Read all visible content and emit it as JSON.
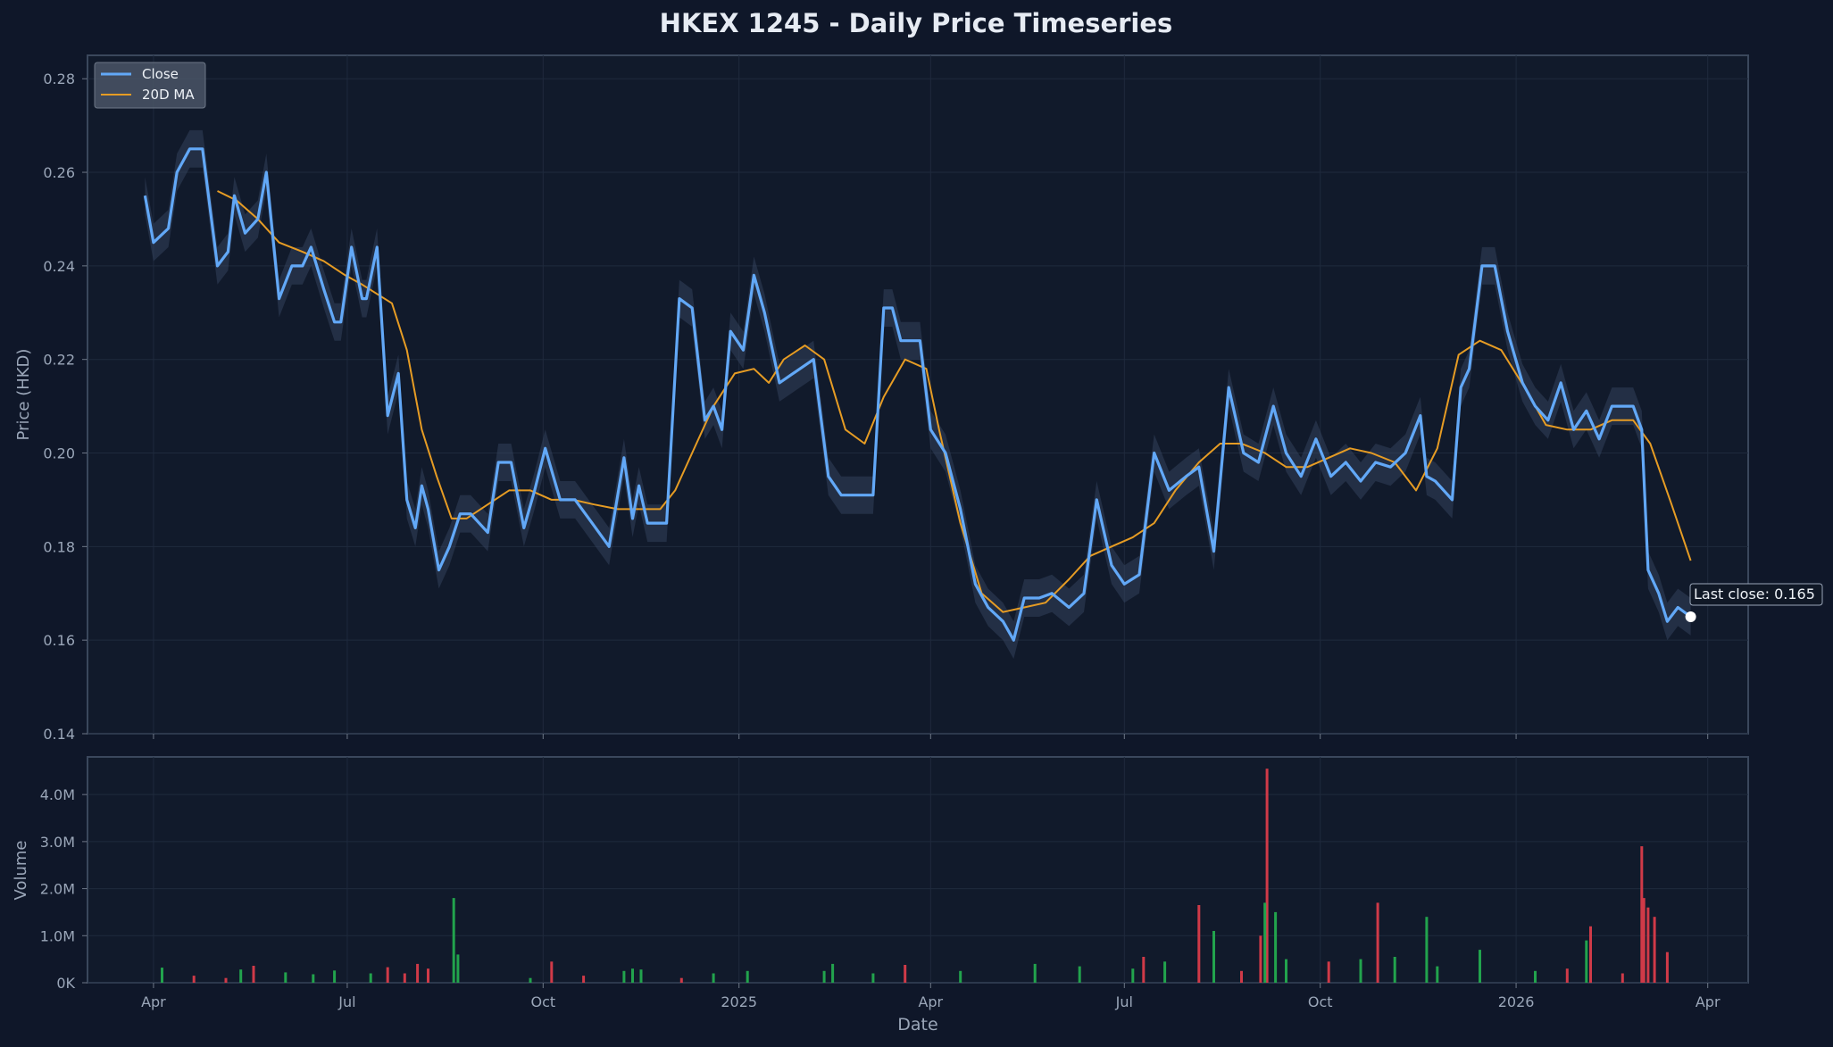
{
  "chart_data": [
    {
      "type": "line",
      "title": "HKEX 1245 - Daily Price Timeseries",
      "ylabel": "Price (HKD)",
      "ylim": [
        0.14,
        0.285
      ],
      "yticks": [
        "0.14",
        "0.16",
        "0.18",
        "0.20",
        "0.22",
        "0.24",
        "0.26",
        "0.28"
      ],
      "xlim": [
        "2024-03-01",
        "2026-04-20"
      ],
      "grid": true,
      "legend": {
        "placement": "top-left",
        "entries": [
          "Close",
          "20D MA"
        ]
      },
      "colors": {
        "close": "#62a8f7",
        "ma": "#e69c24",
        "band": "#3a4a66",
        "marker": "#ffffff"
      },
      "series": [
        {
          "name": "Close",
          "x": [
            "2024-03-28",
            "2024-04-01",
            "2024-04-08",
            "2024-04-12",
            "2024-04-18",
            "2024-04-24",
            "2024-05-01",
            "2024-05-06",
            "2024-05-09",
            "2024-05-14",
            "2024-05-20",
            "2024-05-24",
            "2024-05-30",
            "2024-06-05",
            "2024-06-10",
            "2024-06-14",
            "2024-06-20",
            "2024-06-25",
            "2024-06-28",
            "2024-07-03",
            "2024-07-08",
            "2024-07-10",
            "2024-07-15",
            "2024-07-20",
            "2024-07-25",
            "2024-07-29",
            "2024-08-02",
            "2024-08-05",
            "2024-08-08",
            "2024-08-13",
            "2024-08-18",
            "2024-08-23",
            "2024-08-28",
            "2024-09-05",
            "2024-09-10",
            "2024-09-16",
            "2024-09-22",
            "2024-09-27",
            "2024-10-02",
            "2024-10-09",
            "2024-10-16",
            "2024-10-24",
            "2024-11-01",
            "2024-11-08",
            "2024-11-12",
            "2024-11-15",
            "2024-11-19",
            "2024-11-24",
            "2024-11-28",
            "2024-12-04",
            "2024-12-10",
            "2024-12-16",
            "2024-12-20",
            "2024-12-24",
            "2024-12-28",
            "2025-01-03",
            "2025-01-08",
            "2025-01-13",
            "2025-01-20",
            "2025-02-05",
            "2025-02-12",
            "2025-02-18",
            "2025-02-22",
            "2025-02-26",
            "2025-03-05",
            "2025-03-10",
            "2025-03-14",
            "2025-03-18",
            "2025-03-22",
            "2025-03-27",
            "2025-04-01",
            "2025-04-08",
            "2025-04-15",
            "2025-04-22",
            "2025-04-28",
            "2025-05-05",
            "2025-05-10",
            "2025-05-15",
            "2025-05-22",
            "2025-05-28",
            "2025-06-05",
            "2025-06-12",
            "2025-06-18",
            "2025-06-25",
            "2025-07-01",
            "2025-07-08",
            "2025-07-15",
            "2025-07-22",
            "2025-07-30",
            "2025-08-05",
            "2025-08-12",
            "2025-08-19",
            "2025-08-26",
            "2025-09-02",
            "2025-09-09",
            "2025-09-15",
            "2025-09-22",
            "2025-09-29",
            "2025-10-06",
            "2025-10-13",
            "2025-10-20",
            "2025-10-27",
            "2025-11-03",
            "2025-11-10",
            "2025-11-17",
            "2025-11-20",
            "2025-11-24",
            "2025-11-28",
            "2025-12-02",
            "2025-12-06",
            "2025-12-10",
            "2025-12-16",
            "2025-12-22",
            "2025-12-28",
            "2026-01-04",
            "2026-01-10",
            "2026-01-16",
            "2026-01-22",
            "2026-01-28",
            "2026-02-03",
            "2026-02-09",
            "2026-02-15",
            "2026-02-21",
            "2026-02-25",
            "2026-03-01",
            "2026-03-04",
            "2026-03-09",
            "2026-03-13",
            "2026-03-18",
            "2026-03-24"
          ],
          "y": [
            0.255,
            0.245,
            0.248,
            0.26,
            0.265,
            0.265,
            0.24,
            0.243,
            0.255,
            0.247,
            0.25,
            0.26,
            0.233,
            0.24,
            0.24,
            0.244,
            0.235,
            0.228,
            0.228,
            0.244,
            0.233,
            0.233,
            0.244,
            0.208,
            0.217,
            0.19,
            0.184,
            0.193,
            0.188,
            0.175,
            0.18,
            0.187,
            0.187,
            0.183,
            0.198,
            0.198,
            0.184,
            0.192,
            0.201,
            0.19,
            0.19,
            0.185,
            0.18,
            0.199,
            0.186,
            0.193,
            0.185,
            0.185,
            0.185,
            0.233,
            0.231,
            0.207,
            0.21,
            0.205,
            0.226,
            0.222,
            0.238,
            0.23,
            0.215,
            0.22,
            0.195,
            0.191,
            0.191,
            0.191,
            0.191,
            0.231,
            0.231,
            0.224,
            0.224,
            0.224,
            0.205,
            0.2,
            0.188,
            0.172,
            0.167,
            0.164,
            0.16,
            0.169,
            0.169,
            0.17,
            0.167,
            0.17,
            0.19,
            0.176,
            0.172,
            0.174,
            0.2,
            0.192,
            0.195,
            0.197,
            0.179,
            0.214,
            0.2,
            0.198,
            0.21,
            0.2,
            0.195,
            0.203,
            0.195,
            0.198,
            0.194,
            0.198,
            0.197,
            0.2,
            0.208,
            0.195,
            0.194,
            0.192,
            0.19,
            0.214,
            0.218,
            0.24,
            0.24,
            0.226,
            0.215,
            0.21,
            0.207,
            0.215,
            0.205,
            0.209,
            0.203,
            0.21,
            0.21,
            0.21,
            0.205,
            0.175,
            0.17,
            0.164,
            0.167,
            0.165
          ]
        },
        {
          "name": "20D MA",
          "x": [
            "2024-05-01",
            "2024-05-10",
            "2024-05-20",
            "2024-05-30",
            "2024-06-10",
            "2024-06-20",
            "2024-06-30",
            "2024-07-08",
            "2024-07-15",
            "2024-07-22",
            "2024-07-29",
            "2024-08-05",
            "2024-08-12",
            "2024-08-19",
            "2024-08-26",
            "2024-09-05",
            "2024-09-15",
            "2024-09-25",
            "2024-10-05",
            "2024-10-15",
            "2024-10-25",
            "2024-11-05",
            "2024-11-15",
            "2024-11-25",
            "2024-12-02",
            "2024-12-10",
            "2024-12-20",
            "2024-12-30",
            "2025-01-08",
            "2025-01-15",
            "2025-01-22",
            "2025-02-01",
            "2025-02-10",
            "2025-02-20",
            "2025-03-01",
            "2025-03-10",
            "2025-03-20",
            "2025-03-30",
            "2025-04-05",
            "2025-04-15",
            "2025-04-25",
            "2025-05-05",
            "2025-05-15",
            "2025-05-25",
            "2025-06-05",
            "2025-06-15",
            "2025-06-25",
            "2025-07-05",
            "2025-07-15",
            "2025-07-25",
            "2025-08-05",
            "2025-08-15",
            "2025-08-25",
            "2025-09-05",
            "2025-09-15",
            "2025-09-25",
            "2025-10-05",
            "2025-10-15",
            "2025-10-25",
            "2025-11-05",
            "2025-11-15",
            "2025-11-25",
            "2025-12-05",
            "2025-12-15",
            "2025-12-25",
            "2026-01-05",
            "2026-01-15",
            "2026-01-25",
            "2026-02-05",
            "2026-02-15",
            "2026-02-25",
            "2026-03-05",
            "2026-03-15",
            "2026-03-24"
          ],
          "y": [
            0.256,
            0.254,
            0.25,
            0.245,
            0.243,
            0.241,
            0.238,
            0.236,
            0.234,
            0.232,
            0.222,
            0.205,
            0.195,
            0.186,
            0.186,
            0.189,
            0.192,
            0.192,
            0.19,
            0.19,
            0.189,
            0.188,
            0.188,
            0.188,
            0.192,
            0.2,
            0.21,
            0.217,
            0.218,
            0.215,
            0.22,
            0.223,
            0.22,
            0.205,
            0.202,
            0.212,
            0.22,
            0.218,
            0.205,
            0.185,
            0.17,
            0.166,
            0.167,
            0.168,
            0.173,
            0.178,
            0.18,
            0.182,
            0.185,
            0.192,
            0.198,
            0.202,
            0.202,
            0.2,
            0.197,
            0.197,
            0.199,
            0.201,
            0.2,
            0.198,
            0.192,
            0.201,
            0.221,
            0.224,
            0.222,
            0.214,
            0.206,
            0.205,
            0.205,
            0.207,
            0.207,
            0.202,
            0.189,
            0.177
          ]
        }
      ],
      "annotation": {
        "text": "Last close: 0.165",
        "x": "2026-03-24",
        "y": 0.165
      }
    },
    {
      "type": "bar",
      "xlabel": "Date",
      "ylabel": "Volume",
      "ylim": [
        0,
        4800000
      ],
      "yticks": [
        "0K",
        "1.0M",
        "2.0M",
        "3.0M",
        "4.0M"
      ],
      "yticks_values": [
        0,
        1000000,
        2000000,
        3000000,
        4000000
      ],
      "xticks": [
        {
          "label": "Apr",
          "x": "2024-04-01"
        },
        {
          "label": "Jul",
          "x": "2024-07-01"
        },
        {
          "label": "Oct",
          "x": "2024-10-01"
        },
        {
          "label": "2025",
          "x": "2025-01-01"
        },
        {
          "label": "Apr",
          "x": "2025-04-01"
        },
        {
          "label": "Jul",
          "x": "2025-07-01"
        },
        {
          "label": "Oct",
          "x": "2025-10-01"
        },
        {
          "label": "2026",
          "x": "2026-01-01"
        },
        {
          "label": "Apr",
          "x": "2026-04-01"
        }
      ],
      "colors": {
        "up": "#22a34d",
        "down": "#d03a48"
      },
      "bars": [
        {
          "x": "2024-04-05",
          "v": 320000,
          "d": "up"
        },
        {
          "x": "2024-04-20",
          "v": 150000,
          "d": "down"
        },
        {
          "x": "2024-05-05",
          "v": 100000,
          "d": "down"
        },
        {
          "x": "2024-05-12",
          "v": 280000,
          "d": "up"
        },
        {
          "x": "2024-05-18",
          "v": 360000,
          "d": "down"
        },
        {
          "x": "2024-06-02",
          "v": 220000,
          "d": "up"
        },
        {
          "x": "2024-06-15",
          "v": 180000,
          "d": "up"
        },
        {
          "x": "2024-06-25",
          "v": 260000,
          "d": "up"
        },
        {
          "x": "2024-07-12",
          "v": 200000,
          "d": "up"
        },
        {
          "x": "2024-07-20",
          "v": 330000,
          "d": "down"
        },
        {
          "x": "2024-07-28",
          "v": 200000,
          "d": "down"
        },
        {
          "x": "2024-08-03",
          "v": 400000,
          "d": "down"
        },
        {
          "x": "2024-08-08",
          "v": 300000,
          "d": "down"
        },
        {
          "x": "2024-08-20",
          "v": 1800000,
          "d": "up"
        },
        {
          "x": "2024-08-22",
          "v": 600000,
          "d": "up"
        },
        {
          "x": "2024-09-25",
          "v": 100000,
          "d": "up"
        },
        {
          "x": "2024-10-05",
          "v": 450000,
          "d": "down"
        },
        {
          "x": "2024-10-20",
          "v": 150000,
          "d": "down"
        },
        {
          "x": "2024-11-08",
          "v": 250000,
          "d": "up"
        },
        {
          "x": "2024-11-12",
          "v": 300000,
          "d": "up"
        },
        {
          "x": "2024-11-16",
          "v": 280000,
          "d": "up"
        },
        {
          "x": "2024-12-05",
          "v": 100000,
          "d": "down"
        },
        {
          "x": "2024-12-20",
          "v": 200000,
          "d": "up"
        },
        {
          "x": "2025-01-05",
          "v": 250000,
          "d": "up"
        },
        {
          "x": "2025-02-10",
          "v": 250000,
          "d": "up"
        },
        {
          "x": "2025-02-14",
          "v": 400000,
          "d": "up"
        },
        {
          "x": "2025-03-05",
          "v": 200000,
          "d": "up"
        },
        {
          "x": "2025-03-20",
          "v": 380000,
          "d": "down"
        },
        {
          "x": "2025-04-15",
          "v": 250000,
          "d": "up"
        },
        {
          "x": "2025-05-20",
          "v": 400000,
          "d": "up"
        },
        {
          "x": "2025-06-10",
          "v": 350000,
          "d": "up"
        },
        {
          "x": "2025-07-05",
          "v": 300000,
          "d": "up"
        },
        {
          "x": "2025-07-10",
          "v": 550000,
          "d": "down"
        },
        {
          "x": "2025-07-20",
          "v": 450000,
          "d": "up"
        },
        {
          "x": "2025-08-05",
          "v": 1650000,
          "d": "down"
        },
        {
          "x": "2025-08-12",
          "v": 1100000,
          "d": "up"
        },
        {
          "x": "2025-08-25",
          "v": 250000,
          "d": "down"
        },
        {
          "x": "2025-09-03",
          "v": 1000000,
          "d": "down"
        },
        {
          "x": "2025-09-06",
          "v": 4550000,
          "d": "down"
        },
        {
          "x": "2025-09-05",
          "v": 1700000,
          "d": "up"
        },
        {
          "x": "2025-09-10",
          "v": 1500000,
          "d": "up"
        },
        {
          "x": "2025-09-15",
          "v": 500000,
          "d": "up"
        },
        {
          "x": "2025-10-05",
          "v": 450000,
          "d": "down"
        },
        {
          "x": "2025-10-20",
          "v": 500000,
          "d": "up"
        },
        {
          "x": "2025-10-28",
          "v": 1700000,
          "d": "down"
        },
        {
          "x": "2025-11-05",
          "v": 550000,
          "d": "up"
        },
        {
          "x": "2025-11-20",
          "v": 1400000,
          "d": "up"
        },
        {
          "x": "2025-11-25",
          "v": 350000,
          "d": "up"
        },
        {
          "x": "2025-12-15",
          "v": 700000,
          "d": "up"
        },
        {
          "x": "2026-01-10",
          "v": 250000,
          "d": "up"
        },
        {
          "x": "2026-01-25",
          "v": 300000,
          "d": "down"
        },
        {
          "x": "2026-02-03",
          "v": 900000,
          "d": "up"
        },
        {
          "x": "2026-02-05",
          "v": 1200000,
          "d": "down"
        },
        {
          "x": "2026-02-20",
          "v": 200000,
          "d": "down"
        },
        {
          "x": "2026-03-01",
          "v": 2900000,
          "d": "down"
        },
        {
          "x": "2026-03-02",
          "v": 1800000,
          "d": "down"
        },
        {
          "x": "2026-03-04",
          "v": 1600000,
          "d": "down"
        },
        {
          "x": "2026-03-07",
          "v": 1400000,
          "d": "down"
        },
        {
          "x": "2026-03-13",
          "v": 650000,
          "d": "down"
        }
      ]
    }
  ]
}
